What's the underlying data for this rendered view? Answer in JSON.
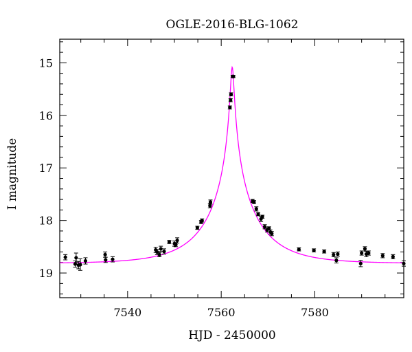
{
  "chart_data": {
    "type": "scatter",
    "title": "OGLE-2016-BLG-1062",
    "xlabel": "HJD - 2450000",
    "ylabel": "I magnitude",
    "xlim": [
      7525.5,
      7599
    ],
    "ylim": [
      14.55,
      19.47
    ],
    "y_inverted": true,
    "xticks_major": [
      7540,
      7560,
      7580
    ],
    "xticks_labels": [
      "7540",
      "7560",
      "7580"
    ],
    "yticks_major": [
      15,
      16,
      17,
      18,
      19
    ],
    "yticks_labels": [
      "15",
      "16",
      "17",
      "18",
      "19"
    ],
    "grid": false,
    "colors": {
      "model": "#ff00ff",
      "points": "#000000"
    },
    "model": {
      "name": "",
      "baseline_mag": 18.82,
      "t0": 7562.35,
      "tE": 11.0,
      "u0": 0.032
    },
    "series": [
      {
        "x": [
          7526.7,
          7528.8,
          7529.0,
          7529.5,
          7529.9,
          7531.0,
          7535.2,
          7535.3,
          7536.8,
          7546.0,
          7546.3,
          7546.8,
          7547.1,
          7547.8,
          7548.9,
          7550.0,
          7550.3,
          7550.6,
          7554.9,
          7555.7,
          7555.9,
          7557.6,
          7557.7,
          7561.85,
          7562.0,
          7562.1,
          7562.45,
          7562.6,
          7566.7,
          7567.0,
          7567.5,
          7567.9,
          7568.5,
          7568.8,
          7569.3,
          7569.8,
          7570.2,
          7570.5,
          7570.8,
          7576.6,
          7579.8,
          7582.0,
          7584.0,
          7584.6,
          7584.9,
          7589.8,
          7590.0,
          7590.7,
          7591.0,
          7591.5,
          7594.5,
          7596.7,
          7599.0
        ],
        "y": [
          18.7,
          18.83,
          18.71,
          18.85,
          18.84,
          18.77,
          18.65,
          18.75,
          18.74,
          18.56,
          18.6,
          18.65,
          18.54,
          18.59,
          18.41,
          18.44,
          18.46,
          18.38,
          18.14,
          18.03,
          18.0,
          17.72,
          17.65,
          15.85,
          15.71,
          15.6,
          15.26,
          15.26,
          17.63,
          17.65,
          17.78,
          17.88,
          17.97,
          17.93,
          18.12,
          18.18,
          18.15,
          18.22,
          18.25,
          18.55,
          18.57,
          18.59,
          18.65,
          18.76,
          18.64,
          18.82,
          18.62,
          18.54,
          18.64,
          18.62,
          18.67,
          18.69,
          18.82
        ],
        "yerr": [
          0.05,
          0.06,
          0.09,
          0.07,
          0.11,
          0.06,
          0.05,
          0.05,
          0.05,
          0.05,
          0.05,
          0.04,
          0.05,
          0.05,
          0.03,
          0.05,
          0.04,
          0.05,
          0.03,
          0.03,
          0.03,
          0.04,
          0.04,
          0.03,
          0.03,
          0.03,
          0.02,
          0.02,
          0.03,
          0.03,
          0.04,
          0.03,
          0.05,
          0.03,
          0.04,
          0.04,
          0.03,
          0.04,
          0.04,
          0.03,
          0.03,
          0.03,
          0.04,
          0.05,
          0.04,
          0.06,
          0.04,
          0.04,
          0.05,
          0.04,
          0.04,
          0.04,
          0.05
        ]
      }
    ]
  }
}
